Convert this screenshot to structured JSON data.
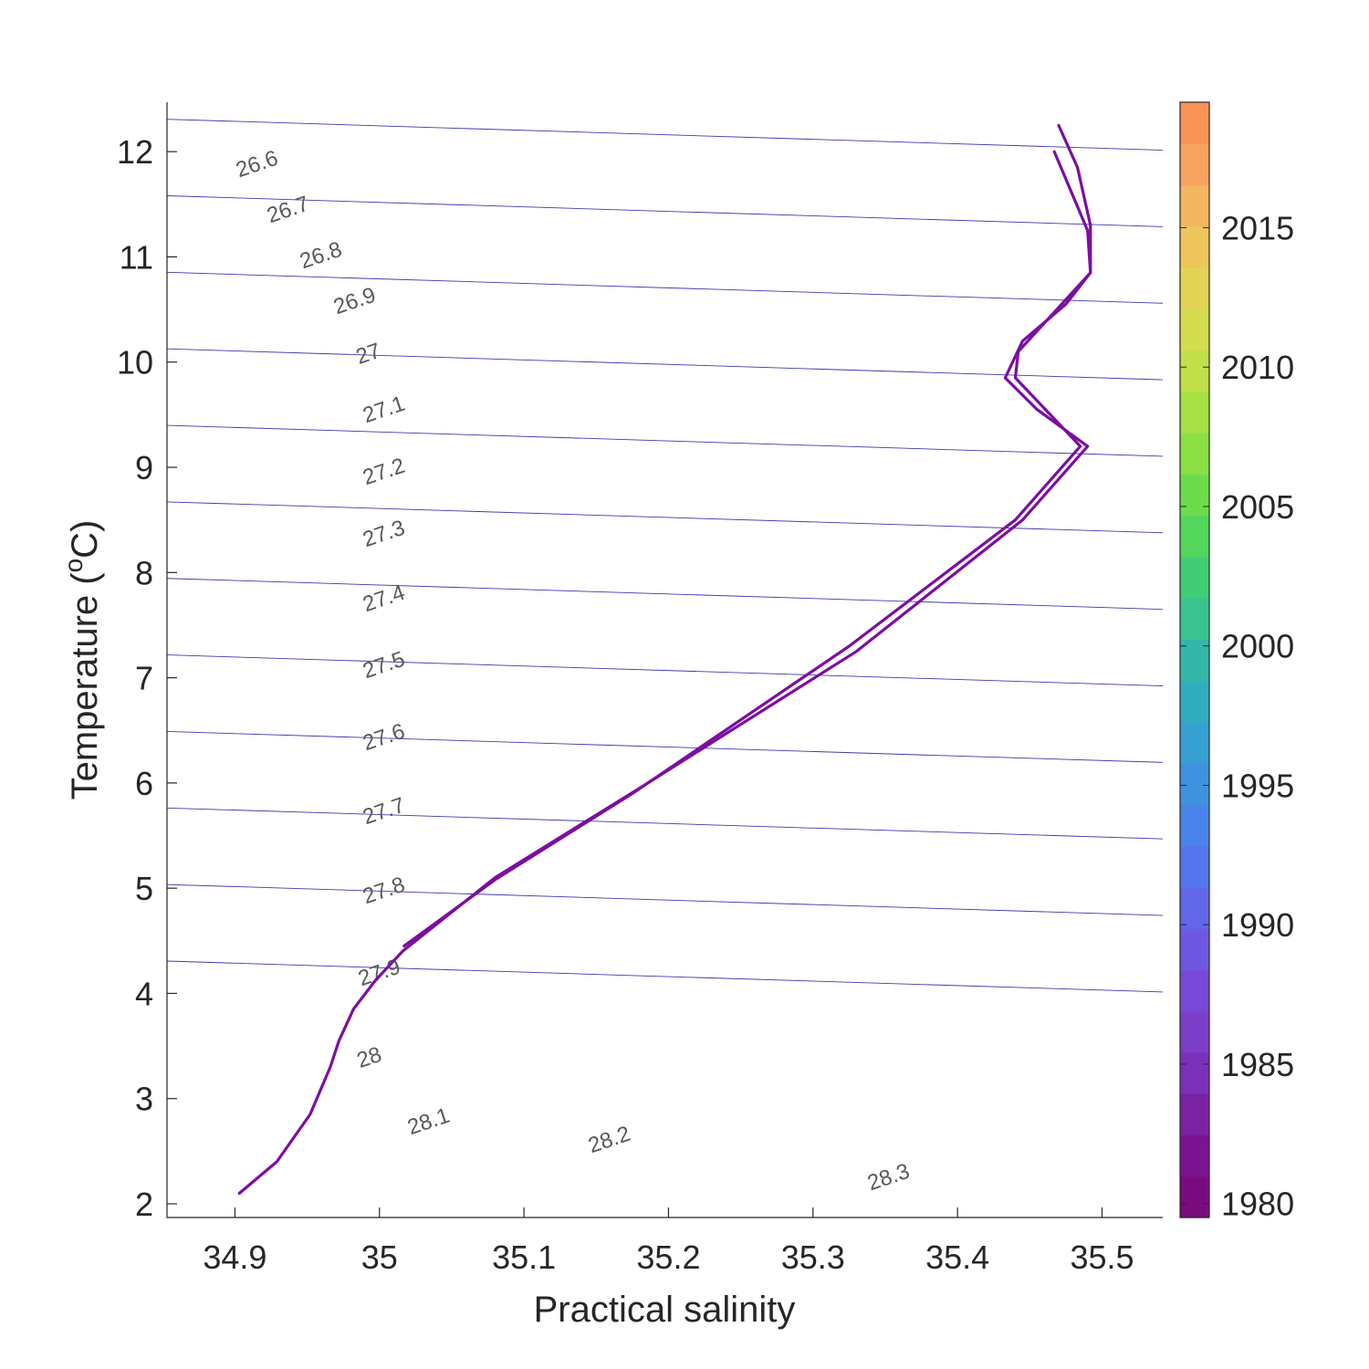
{
  "chart_data": {
    "type": "line",
    "title": "",
    "xlabel": "Practical salinity",
    "ylabel": "Temperature (",
    "ylabel_sup": "o",
    "ylabel_unit": "C)",
    "xlim": [
      34.853,
      35.542
    ],
    "ylim": [
      1.87,
      12.47
    ],
    "x_ticks": [
      "34.9",
      "35",
      "35.1",
      "35.2",
      "35.3",
      "35.4",
      "35.5"
    ],
    "y_ticks": [
      "2",
      "3",
      "4",
      "5",
      "6",
      "7",
      "8",
      "9",
      "10",
      "11",
      "12"
    ],
    "grid": false,
    "density_contours": {
      "color": "#3b3bb0",
      "levels": [
        "26.6",
        "26.7",
        "26.8",
        "26.9",
        "27",
        "27.1",
        "27.2",
        "27.3",
        "27.4",
        "27.5",
        "27.6",
        "27.7",
        "27.8",
        "27.9",
        "28",
        "28.1",
        "28.2",
        "28.3"
      ]
    },
    "colorbar": {
      "range": [
        1979.5,
        2019.5
      ],
      "ticks": [
        "1980",
        "1985",
        "1990",
        "1995",
        "2000",
        "2005",
        "2010",
        "2015"
      ],
      "colors": [
        "#7a0b7e",
        "#7a1490",
        "#7a22a4",
        "#7a30b8",
        "#7a3ec9",
        "#7649d6",
        "#6e57e1",
        "#6266e8",
        "#5575ec",
        "#4a84ea",
        "#3f92e0",
        "#36a0d2",
        "#32acbf",
        "#34b7a8",
        "#3ac290",
        "#43cc76",
        "#52d65c",
        "#6ddc4a",
        "#8bdf44",
        "#a7e044",
        "#c0df48",
        "#d4dc4f",
        "#e3d456",
        "#eec65c",
        "#f4b560",
        "#f7a35f",
        "#f99358"
      ]
    },
    "series": [
      {
        "color": "#7b0fa0",
        "x": [
          34.903,
          34.929,
          34.952,
          34.966,
          34.972,
          34.982,
          34.997,
          35.016,
          35.08,
          35.18,
          35.33,
          35.445,
          35.49,
          35.455,
          35.433,
          35.445,
          35.475,
          35.492,
          35.492,
          35.483,
          35.47
        ],
        "y": [
          2.1,
          2.4,
          2.85,
          3.3,
          3.55,
          3.85,
          4.12,
          4.4,
          5.1,
          5.95,
          7.25,
          8.5,
          9.2,
          9.55,
          9.85,
          10.2,
          10.55,
          10.85,
          11.3,
          11.85,
          12.25
        ]
      },
      {
        "color": "#7b0fa0",
        "x": [
          35.017,
          35.08,
          35.175,
          35.325,
          35.44,
          35.485,
          35.44,
          35.442,
          35.47,
          35.492,
          35.49,
          35.467
        ],
        "y": [
          4.45,
          5.08,
          5.9,
          7.3,
          8.5,
          9.2,
          9.85,
          10.1,
          10.52,
          10.85,
          11.25,
          12.0
        ]
      }
    ]
  }
}
